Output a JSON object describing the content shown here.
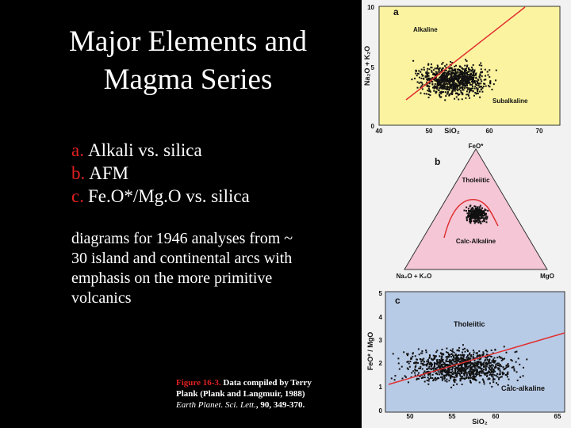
{
  "slide": {
    "title": [
      "Major Elements and",
      "Magma Series"
    ],
    "list": [
      {
        "marker": "a.",
        "text": "Alkali vs. silica"
      },
      {
        "marker": "b.",
        "text": "AFM"
      },
      {
        "marker": "c.",
        "text": "Fe.O*/Mg.O vs. silica"
      }
    ],
    "paragraph": [
      "diagrams for 1946 analyses from  ~",
      "30 island and continental arcs with",
      "emphasis on the more primitive",
      "volcanics"
    ],
    "caption": {
      "figure": "Figure 16-3.",
      "line1": " Data compiled by Terry",
      "line2": "Plank (Plank and Langmuir, 1988)",
      "journal": "Earth Planet. Sci. Lett.",
      "rest": ", 90, 349-370."
    }
  },
  "panels": [
    {
      "label": "a",
      "y_title": "Na₂O + K₂O",
      "x_title": "SiO₂",
      "yticks": [
        "10",
        "5",
        "0"
      ],
      "xticks": [
        "40",
        "50",
        "60",
        "70"
      ],
      "annotations": [
        "Alkaline",
        "Subalkaline"
      ]
    },
    {
      "label": "b",
      "apex": "FeO*",
      "left": "Na₂O + K₂O",
      "right": "MgO",
      "annotations": [
        "Tholeiitic",
        "Calc-Alkaline"
      ]
    },
    {
      "label": "c",
      "y_title": "FeO* / MgO",
      "x_title": "SiO₂",
      "yticks": [
        "5",
        "4",
        "3",
        "2",
        "1",
        "0"
      ],
      "xticks": [
        "50",
        "55",
        "60",
        "65"
      ],
      "annotations": [
        "Tholeiitic",
        "Calc-alkaline"
      ]
    }
  ]
}
